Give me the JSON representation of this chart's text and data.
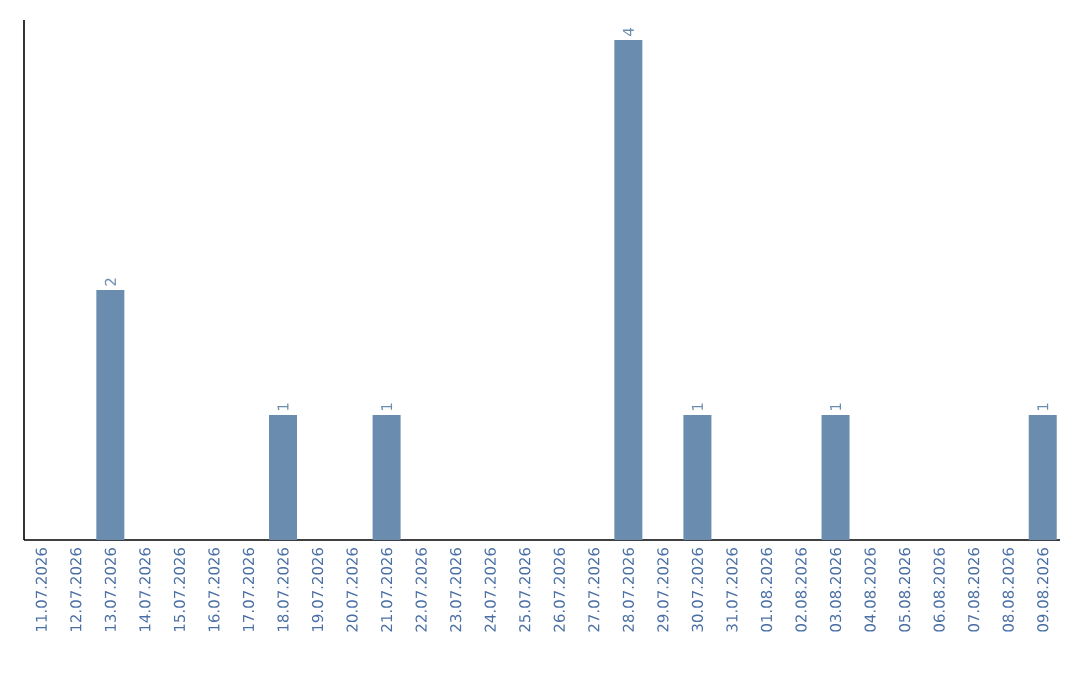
{
  "chart_data": {
    "type": "bar",
    "color": "#6a8caf",
    "categories": [
      "11.07.2026",
      "12.07.2026",
      "13.07.2026",
      "14.07.2026",
      "15.07.2026",
      "16.07.2026",
      "17.07.2026",
      "18.07.2026",
      "19.07.2026",
      "20.07.2026",
      "21.07.2026",
      "22.07.2026",
      "23.07.2026",
      "24.07.2026",
      "25.07.2026",
      "26.07.2026",
      "27.07.2026",
      "28.07.2026",
      "29.07.2026",
      "30.07.2026",
      "31.07.2026",
      "01.08.2026",
      "02.08.2026",
      "03.08.2026",
      "04.08.2026",
      "05.08.2026",
      "06.08.2026",
      "07.08.2026",
      "08.08.2026",
      "09.08.2026"
    ],
    "values": [
      0,
      0,
      2,
      0,
      0,
      0,
      0,
      1,
      0,
      0,
      1,
      0,
      0,
      0,
      0,
      0,
      0,
      4,
      0,
      1,
      0,
      0,
      0,
      1,
      0,
      0,
      0,
      0,
      0,
      1
    ],
    "value_labels": [
      null,
      null,
      "2",
      null,
      null,
      null,
      null,
      "1",
      null,
      null,
      "1",
      null,
      null,
      null,
      null,
      null,
      null,
      "4",
      null,
      "1",
      null,
      null,
      null,
      "1",
      null,
      null,
      null,
      null,
      null,
      "1"
    ]
  }
}
